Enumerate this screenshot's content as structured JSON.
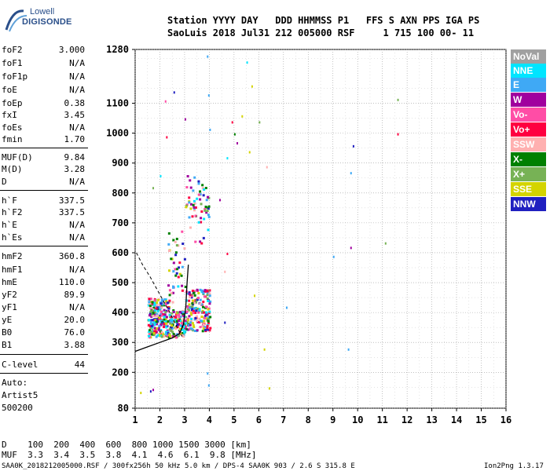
{
  "logo": {
    "brand": "Lowell",
    "name": "DIGISONDE"
  },
  "header": {
    "line1": "Station YYYY DAY   DDD HHMMSS P1   FFS S AXN PPS IGA PS",
    "line2": "SaoLuis 2018 Jul31 212 005000 RSF     1 715 100 00- 11"
  },
  "params": [
    {
      "name": "foF2",
      "value": "3.000"
    },
    {
      "name": "foF1",
      "value": "N/A"
    },
    {
      "name": "foF1p",
      "value": "N/A"
    },
    {
      "name": "foE",
      "value": "N/A"
    },
    {
      "name": "foEp",
      "value": "0.38"
    },
    {
      "name": "fxI",
      "value": "3.45"
    },
    {
      "name": "foEs",
      "value": "N/A"
    },
    {
      "name": "fmin",
      "value": "1.70"
    },
    {
      "name": "MUF(D)",
      "value": "9.84"
    },
    {
      "name": "M(D)",
      "value": "3.28"
    },
    {
      "name": "D",
      "value": "N/A"
    },
    {
      "name": "h`F",
      "value": "337.5"
    },
    {
      "name": "h`F2",
      "value": "337.5"
    },
    {
      "name": "h`E",
      "value": "N/A"
    },
    {
      "name": "h`Es",
      "value": "N/A"
    },
    {
      "name": "hmF2",
      "value": "360.8"
    },
    {
      "name": "hmF1",
      "value": "N/A"
    },
    {
      "name": "hmE",
      "value": "110.0"
    },
    {
      "name": "yF2",
      "value": "89.9"
    },
    {
      "name": "yF1",
      "value": "N/A"
    },
    {
      "name": "yE",
      "value": "20.0"
    },
    {
      "name": "B0",
      "value": "76.0"
    },
    {
      "name": "B1",
      "value": "3.88"
    },
    {
      "name": "C-level",
      "value": "44"
    }
  ],
  "auto": {
    "line1": "Auto:",
    "line2": "Artist5",
    "line3": "500200"
  },
  "legend": [
    {
      "label": "NoVal",
      "color": "#a0a0a0"
    },
    {
      "label": "NNE",
      "color": "#00e5ff"
    },
    {
      "label": "E",
      "color": "#3fa9f5"
    },
    {
      "label": "W",
      "color": "#a0009e"
    },
    {
      "label": "Vo-",
      "color": "#ff4da6"
    },
    {
      "label": "Vo+",
      "color": "#ff0040"
    },
    {
      "label": "SSW",
      "color": "#ffb0b0"
    },
    {
      "label": "X-",
      "color": "#008000"
    },
    {
      "label": "X+",
      "color": "#77b255"
    },
    {
      "label": "SSE",
      "color": "#d4d400"
    },
    {
      "label": "NNW",
      "color": "#2020c0"
    }
  ],
  "footer": {
    "d_line": "D    100  200  400  600  800 1000 1500 3000 [km]",
    "muf_line": "MUF  3.3  3.4  3.5  3.8  4.1  4.6  6.1  9.8 [MHz]",
    "info": "SAA0K_2018212005000.RSF / 300fx256h 50 kHz 5.0 km / DPS-4 SAA0K 903 / 2.6 S 315.8 E",
    "version": "Ion2Png 1.3.17"
  },
  "chart_data": {
    "type": "scatter",
    "xlim": [
      1,
      16
    ],
    "ylim": [
      80,
      1280
    ],
    "xticks": [
      "1",
      "2",
      "3",
      "4",
      "5",
      "6",
      "7",
      "8",
      "9",
      "10",
      "11",
      "12",
      "13",
      "14",
      "15",
      "16"
    ],
    "yticks": [
      "80",
      "200",
      "300",
      "400",
      "500",
      "600",
      "700",
      "800",
      "900",
      "1000",
      "1100",
      "1280"
    ],
    "grid": true,
    "legend_position": "right",
    "trace_region": {
      "f_start": 1.5,
      "f_end": 4.0,
      "h_low": 320,
      "h_high": 480
    },
    "profile_curve": [
      [
        1.0,
        270
      ],
      [
        1.5,
        285
      ],
      [
        2.0,
        300
      ],
      [
        2.5,
        315
      ],
      [
        2.8,
        330
      ],
      [
        2.95,
        360
      ],
      [
        3.05,
        420
      ],
      [
        3.1,
        500
      ],
      [
        3.15,
        560
      ]
    ],
    "dashed_curve": [
      [
        1.05,
        600
      ],
      [
        1.3,
        560
      ],
      [
        1.6,
        520
      ],
      [
        2.0,
        460
      ],
      [
        2.4,
        400
      ],
      [
        2.7,
        350
      ],
      [
        2.9,
        320
      ]
    ],
    "scatter_points": [
      {
        "f": 2.55,
        "h": 1140,
        "c": "#2020c0"
      },
      {
        "f": 2.2,
        "h": 1110,
        "c": "#ff4da6"
      },
      {
        "f": 2.25,
        "h": 990,
        "c": "#ff0040"
      },
      {
        "f": 3.0,
        "h": 1050,
        "c": "#a0009e"
      },
      {
        "f": 3.9,
        "h": 1260,
        "c": "#3fa9f5"
      },
      {
        "f": 3.95,
        "h": 1130,
        "c": "#3fa9f5"
      },
      {
        "f": 4.0,
        "h": 1015,
        "c": "#3fa9f5"
      },
      {
        "f": 4.9,
        "h": 1040,
        "c": "#ff0040"
      },
      {
        "f": 5.0,
        "h": 1000,
        "c": "#008000"
      },
      {
        "f": 5.3,
        "h": 1060,
        "c": "#d4d400"
      },
      {
        "f": 5.5,
        "h": 1240,
        "c": "#00e5ff"
      },
      {
        "f": 5.7,
        "h": 1160,
        "c": "#d4d400"
      },
      {
        "f": 5.1,
        "h": 970,
        "c": "#a0009e"
      },
      {
        "f": 4.7,
        "h": 920,
        "c": "#00e5ff"
      },
      {
        "f": 5.6,
        "h": 940,
        "c": "#d4d400"
      },
      {
        "f": 6.0,
        "h": 1040,
        "c": "#77b255"
      },
      {
        "f": 6.3,
        "h": 890,
        "c": "#ffb0b0"
      },
      {
        "f": 4.4,
        "h": 780,
        "c": "#a0009e"
      },
      {
        "f": 4.7,
        "h": 600,
        "c": "#ff0040"
      },
      {
        "f": 4.6,
        "h": 540,
        "c": "#ffb0b0"
      },
      {
        "f": 5.8,
        "h": 460,
        "c": "#d4d400"
      },
      {
        "f": 4.6,
        "h": 370,
        "c": "#2020c0"
      },
      {
        "f": 6.2,
        "h": 280,
        "c": "#d4d400"
      },
      {
        "f": 6.4,
        "h": 150,
        "c": "#d4d400"
      },
      {
        "f": 7.1,
        "h": 420,
        "c": "#3fa9f5"
      },
      {
        "f": 9.0,
        "h": 590,
        "c": "#3fa9f5"
      },
      {
        "f": 9.6,
        "h": 280,
        "c": "#3fa9f5"
      },
      {
        "f": 9.7,
        "h": 870,
        "c": "#3fa9f5"
      },
      {
        "f": 9.7,
        "h": 620,
        "c": "#a0009e"
      },
      {
        "f": 9.8,
        "h": 960,
        "c": "#2020c0"
      },
      {
        "f": 11.1,
        "h": 635,
        "c": "#77b255"
      },
      {
        "f": 11.6,
        "h": 1000,
        "c": "#ff0040"
      },
      {
        "f": 11.6,
        "h": 1115,
        "c": "#77b255"
      },
      {
        "f": 1.6,
        "h": 140,
        "c": "#2020c0"
      },
      {
        "f": 1.7,
        "h": 145,
        "c": "#a0009e"
      },
      {
        "f": 1.2,
        "h": 135,
        "c": "#d4d400"
      },
      {
        "f": 3.9,
        "h": 200,
        "c": "#3fa9f5"
      },
      {
        "f": 3.95,
        "h": 160,
        "c": "#3fa9f5"
      },
      {
        "f": 2.0,
        "h": 860,
        "c": "#00e5ff"
      },
      {
        "f": 1.7,
        "h": 820,
        "c": "#77b255"
      }
    ]
  }
}
